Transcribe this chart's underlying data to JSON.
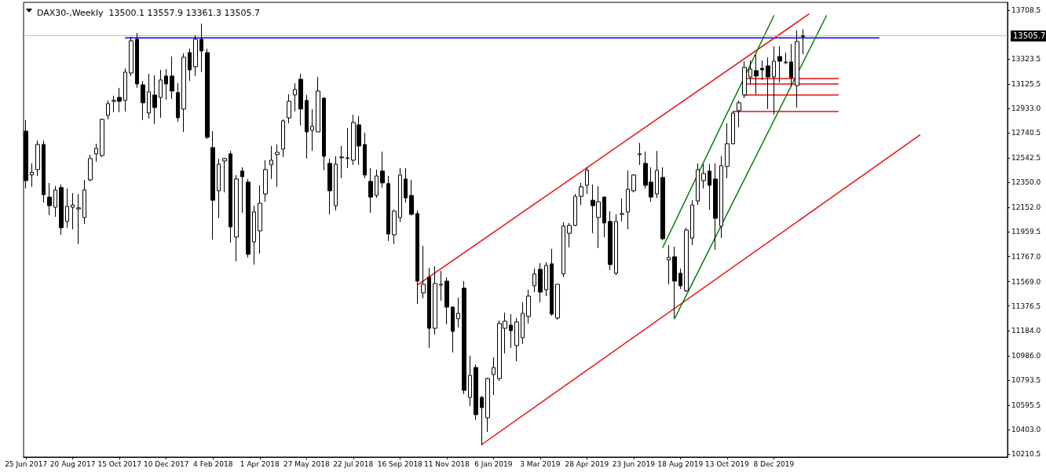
{
  "chart_data": {
    "type": "candlestick",
    "title": "DAX30-,Weekly  13500.1 13557.9 13361.3 13505.7",
    "x": [
      "2017-06-25",
      "2017-07-02",
      "2017-07-09",
      "2017-07-16",
      "2017-07-23",
      "2017-07-30",
      "2017-08-06",
      "2017-08-13",
      "2017-08-20",
      "2017-08-27",
      "2017-09-03",
      "2017-09-10",
      "2017-09-17",
      "2017-09-24",
      "2017-10-01",
      "2017-10-08",
      "2017-10-15",
      "2017-10-22",
      "2017-10-29",
      "2017-11-05",
      "2017-11-12",
      "2017-11-19",
      "2017-11-26",
      "2017-12-03",
      "2017-12-10",
      "2017-12-17",
      "2017-12-24",
      "2017-12-31",
      "2018-01-07",
      "2018-01-14",
      "2018-01-21",
      "2018-01-28",
      "2018-02-04",
      "2018-02-11",
      "2018-02-18",
      "2018-02-25",
      "2018-03-04",
      "2018-03-11",
      "2018-03-18",
      "2018-03-25",
      "2018-04-01",
      "2018-04-08",
      "2018-04-15",
      "2018-04-22",
      "2018-04-29",
      "2018-05-06",
      "2018-05-13",
      "2018-05-20",
      "2018-05-27",
      "2018-06-03",
      "2018-06-10",
      "2018-06-17",
      "2018-06-24",
      "2018-07-01",
      "2018-07-08",
      "2018-07-15",
      "2018-07-22",
      "2018-07-29",
      "2018-08-05",
      "2018-08-12",
      "2018-08-19",
      "2018-08-26",
      "2018-09-02",
      "2018-09-09",
      "2018-09-16",
      "2018-09-23",
      "2018-09-30",
      "2018-10-07",
      "2018-10-14",
      "2018-10-21",
      "2018-10-28",
      "2018-11-04",
      "2018-11-11",
      "2018-11-18",
      "2018-11-25",
      "2018-12-02",
      "2018-12-09",
      "2018-12-16",
      "2018-12-23",
      "2018-12-30",
      "2019-01-06",
      "2019-01-13",
      "2019-01-20",
      "2019-01-27",
      "2019-02-03",
      "2019-02-10",
      "2019-02-17",
      "2019-02-24",
      "2019-03-03",
      "2019-03-10",
      "2019-03-17",
      "2019-03-24",
      "2019-03-31",
      "2019-04-07",
      "2019-04-14",
      "2019-04-21",
      "2019-04-28",
      "2019-05-05",
      "2019-05-12",
      "2019-05-19",
      "2019-05-26",
      "2019-06-02",
      "2019-06-09",
      "2019-06-16",
      "2019-06-23",
      "2019-06-30",
      "2019-07-07",
      "2019-07-14",
      "2019-07-21",
      "2019-07-28",
      "2019-08-04",
      "2019-08-11",
      "2019-08-18",
      "2019-08-25",
      "2019-09-01",
      "2019-09-08",
      "2019-09-15",
      "2019-09-22",
      "2019-09-29",
      "2019-10-06",
      "2019-10-13",
      "2019-10-20",
      "2019-10-27",
      "2019-11-03",
      "2019-11-10",
      "2019-11-17",
      "2019-11-24",
      "2019-12-01",
      "2019-12-08",
      "2019-12-15",
      "2019-12-22",
      "2019-12-29",
      "2020-01-05",
      "2020-01-12"
    ],
    "ohlc": [
      [
        12755,
        12842,
        12303,
        12365
      ],
      [
        12410,
        12502,
        12316,
        12430
      ],
      [
        12452,
        12681,
        12402,
        12650
      ],
      [
        12650,
        12681,
        12192,
        12254
      ],
      [
        12235,
        12347,
        12093,
        12167
      ],
      [
        12155,
        12322,
        12080,
        12291
      ],
      [
        12310,
        12334,
        11938,
        11994
      ],
      [
        12043,
        12303,
        11994,
        12161
      ],
      [
        12155,
        12266,
        11981,
        12173
      ],
      [
        12142,
        12260,
        11864,
        12150
      ],
      [
        12074,
        12371,
        12025,
        12291
      ],
      [
        12371,
        12570,
        12360,
        12539
      ],
      [
        12576,
        12656,
        12514,
        12619
      ],
      [
        12563,
        12854,
        12551,
        12848
      ],
      [
        12879,
        12997,
        12848,
        12972
      ],
      [
        12990,
        13034,
        12904,
        12997
      ],
      [
        13021,
        13096,
        12904,
        12990
      ],
      [
        12997,
        13250,
        12910,
        13220
      ],
      [
        13213,
        13498,
        13190,
        13467
      ],
      [
        13479,
        13529,
        13096,
        13127
      ],
      [
        13120,
        13151,
        12842,
        12978
      ],
      [
        12898,
        13207,
        12854,
        13065
      ],
      [
        13040,
        13195,
        12811,
        12941
      ],
      [
        13021,
        13238,
        12860,
        13158
      ],
      [
        13189,
        13244,
        13003,
        13127
      ],
      [
        13189,
        13343,
        13009,
        13071
      ],
      [
        13059,
        13133,
        12829,
        12860
      ],
      [
        12929,
        13368,
        12749,
        13337
      ],
      [
        13374,
        13405,
        13151,
        13238
      ],
      [
        13263,
        13510,
        13189,
        13479
      ],
      [
        13479,
        13603,
        13220,
        13387
      ],
      [
        13374,
        13405,
        12693,
        12706
      ],
      [
        12625,
        12755,
        11901,
        12210
      ],
      [
        12285,
        12539,
        12068,
        12495
      ],
      [
        12520,
        12545,
        12272,
        12539
      ],
      [
        12576,
        12600,
        11876,
        12000
      ],
      [
        11920,
        12409,
        11728,
        12378
      ],
      [
        12440,
        12470,
        12111,
        12396
      ],
      [
        12353,
        12378,
        11759,
        11784
      ],
      [
        11882,
        12167,
        11703,
        12118
      ],
      [
        11969,
        12328,
        11790,
        12186
      ],
      [
        12260,
        12526,
        12198,
        12452
      ],
      [
        12489,
        12638,
        12378,
        12526
      ],
      [
        12570,
        12650,
        12316,
        12588
      ],
      [
        12613,
        12848,
        12551,
        12836
      ],
      [
        12860,
        13046,
        12817,
        12990
      ],
      [
        13040,
        13133,
        12910,
        13083
      ],
      [
        13164,
        13207,
        12799,
        12929
      ],
      [
        12997,
        13040,
        12539,
        12749
      ],
      [
        12761,
        12929,
        12600,
        12792
      ],
      [
        12749,
        13182,
        12749,
        13071
      ],
      [
        13015,
        13021,
        12446,
        12557
      ],
      [
        12501,
        12539,
        12099,
        12285
      ],
      [
        12167,
        12557,
        12130,
        12495
      ],
      [
        12545,
        12638,
        12384,
        12551
      ],
      [
        12539,
        12780,
        12464,
        12545
      ],
      [
        12526,
        12885,
        12489,
        12823
      ],
      [
        12805,
        12873,
        12489,
        12638
      ],
      [
        12650,
        12743,
        12384,
        12409
      ],
      [
        12359,
        12464,
        12111,
        12235
      ],
      [
        12248,
        12452,
        12229,
        12402
      ],
      [
        12440,
        12594,
        12310,
        12347
      ],
      [
        12341,
        12402,
        11889,
        11944
      ],
      [
        11938,
        12136,
        11864,
        12124
      ],
      [
        12074,
        12464,
        12037,
        12409
      ],
      [
        12378,
        12464,
        12192,
        12229
      ],
      [
        12248,
        12371,
        12090,
        12099
      ],
      [
        12105,
        12130,
        11393,
        11573
      ],
      [
        11480,
        11851,
        11437,
        11548
      ],
      [
        11604,
        11678,
        11047,
        11201
      ],
      [
        11201,
        11690,
        11152,
        11554
      ],
      [
        11542,
        11653,
        11418,
        11548
      ],
      [
        11573,
        11604,
        11232,
        11368
      ],
      [
        11368,
        11374,
        11010,
        11177
      ],
      [
        11276,
        11443,
        11208,
        11319
      ],
      [
        11517,
        11573,
        10681,
        10712
      ],
      [
        10656,
        10985,
        10588,
        10830
      ],
      [
        10892,
        10916,
        10477,
        10520
      ],
      [
        10656,
        10669,
        10279,
        10576
      ],
      [
        10496,
        10811,
        10384,
        10805
      ],
      [
        10836,
        10972,
        10675,
        10892
      ],
      [
        10805,
        11263,
        10787,
        11239
      ],
      [
        11201,
        11325,
        11003,
        11257
      ],
      [
        11226,
        11313,
        11047,
        11183
      ],
      [
        11065,
        11282,
        10941,
        11251
      ],
      [
        11127,
        11406,
        11078,
        11319
      ],
      [
        11294,
        11505,
        11239,
        11455
      ],
      [
        11536,
        11672,
        11486,
        11629
      ],
      [
        11666,
        11715,
        11406,
        11486
      ],
      [
        11505,
        11722,
        11455,
        11697
      ],
      [
        11709,
        11827,
        11300,
        11313
      ],
      [
        11282,
        11548,
        11269,
        11548
      ],
      [
        11629,
        12037,
        11604,
        12006
      ],
      [
        11950,
        12031,
        11839,
        12012
      ],
      [
        12012,
        12260,
        12006,
        12241
      ],
      [
        12241,
        12347,
        12173,
        12316
      ],
      [
        12328,
        12470,
        12260,
        12446
      ],
      [
        12210,
        12334,
        11950,
        12167
      ],
      [
        12074,
        12322,
        11833,
        12198
      ],
      [
        12235,
        12241,
        11919,
        12031
      ],
      [
        12043,
        12124,
        11660,
        11703
      ],
      [
        11635,
        12099,
        11622,
        12043
      ],
      [
        12099,
        12223,
        12043,
        12105
      ],
      [
        12118,
        12446,
        11981,
        12297
      ],
      [
        12285,
        12415,
        12272,
        12409
      ],
      [
        12570,
        12662,
        12489,
        12576
      ],
      [
        12501,
        12594,
        12303,
        12328
      ],
      [
        12353,
        12470,
        12198,
        12235
      ],
      [
        12260,
        12600,
        12229,
        12446
      ],
      [
        12390,
        12470,
        11895,
        11907
      ],
      [
        11740,
        11857,
        11548,
        11759
      ],
      [
        11765,
        11845,
        11282,
        11573
      ],
      [
        11635,
        11672,
        11511,
        11536
      ],
      [
        11498,
        11994,
        11486,
        11975
      ],
      [
        11913,
        12210,
        11857,
        12173
      ],
      [
        12204,
        12501,
        12173,
        12452
      ],
      [
        12365,
        12495,
        12303,
        12421
      ],
      [
        12440,
        12495,
        12136,
        12328
      ],
      [
        12378,
        12501,
        11820,
        12068
      ],
      [
        12006,
        12557,
        11913,
        12483
      ],
      [
        12477,
        12817,
        12384,
        12656
      ],
      [
        12656,
        12910,
        12650,
        12897
      ],
      [
        12916,
        12997,
        12786,
        12978
      ],
      [
        13040,
        13306,
        13015,
        13257
      ],
      [
        13182,
        13312,
        13127,
        13244
      ],
      [
        13232,
        13356,
        13046,
        13189
      ],
      [
        13250,
        13312,
        13157,
        13238
      ],
      [
        13269,
        13337,
        12929,
        13182
      ],
      [
        13182,
        13424,
        12885,
        13306
      ],
      [
        13343,
        13424,
        13139,
        13306
      ],
      [
        13294,
        13374,
        13281,
        13300
      ],
      [
        13300,
        13442,
        13108,
        13176
      ],
      [
        13114,
        13548,
        12941,
        13461
      ],
      [
        13500.1,
        13557.9,
        13361.3,
        13505.7
      ]
    ],
    "series": [
      {
        "type": "line",
        "color": "#0000ff",
        "x": [
          "2017-10-22",
          "2020-04-12"
        ],
        "values": [
          13490,
          13490
        ]
      },
      {
        "type": "line",
        "color": "#e81010",
        "x": [
          "2018-10-07",
          "2020-01-19"
        ],
        "values": [
          11542,
          13678
        ]
      },
      {
        "type": "line",
        "color": "#e81010",
        "x": [
          "2018-12-23",
          "2020-05-31"
        ],
        "values": [
          10285,
          12724
        ]
      },
      {
        "type": "line",
        "color": "#008000",
        "x": [
          "2019-07-28",
          "2019-12-08"
        ],
        "values": [
          11839,
          13665
        ]
      },
      {
        "type": "line",
        "color": "#008000",
        "x": [
          "2019-08-11",
          "2020-02-09"
        ],
        "values": [
          11276,
          13665
        ]
      },
      {
        "type": "line",
        "color": "#e81010",
        "x": [
          "2019-11-03",
          "2020-02-23"
        ],
        "values": [
          13170,
          13170
        ]
      },
      {
        "type": "line",
        "color": "#e81010",
        "x": [
          "2019-11-03",
          "2020-02-23"
        ],
        "values": [
          13127,
          13127
        ]
      },
      {
        "type": "line",
        "color": "#e81010",
        "x": [
          "2019-11-03",
          "2020-02-23"
        ],
        "values": [
          13040,
          13040
        ]
      },
      {
        "type": "line",
        "color": "#e81010",
        "x": [
          "2019-10-20",
          "2020-02-23"
        ],
        "values": [
          12910,
          12910
        ]
      }
    ],
    "ref_lines": [
      {
        "axis": "y",
        "value": 13505.7,
        "label": "13505.7",
        "color": "#c0c0c0"
      }
    ],
    "xlim": [
      "2017-06-22",
      "2020-09-13"
    ],
    "xticks": [
      {
        "value": "2017-06-25",
        "label": "25 Jun 2017"
      },
      {
        "value": "2017-08-20",
        "label": "20 Aug 2017"
      },
      {
        "value": "2017-10-15",
        "label": "15 Oct 2017"
      },
      {
        "value": "2017-12-10",
        "label": "10 Dec 2017"
      },
      {
        "value": "2018-02-04",
        "label": "4 Feb 2018"
      },
      {
        "value": "2018-04-01",
        "label": "1 Apr 2018"
      },
      {
        "value": "2018-05-27",
        "label": "27 May 2018"
      },
      {
        "value": "2018-07-22",
        "label": "22 Jul 2018"
      },
      {
        "value": "2018-09-16",
        "label": "16 Sep 2018"
      },
      {
        "value": "2018-11-11",
        "label": "11 Nov 2018"
      },
      {
        "value": "2019-01-06",
        "label": "6 Jan 2019"
      },
      {
        "value": "2019-03-03",
        "label": "3 Mar 2019"
      },
      {
        "value": "2019-04-28",
        "label": "28 Apr 2019"
      },
      {
        "value": "2019-06-23",
        "label": "23 Jun 2019"
      },
      {
        "value": "2019-08-18",
        "label": "18 Aug 2019"
      },
      {
        "value": "2019-10-13",
        "label": "13 Oct 2019"
      },
      {
        "value": "2019-12-08",
        "label": "8 Dec 2019"
      }
    ],
    "ylim": [
      10186,
      13770
    ],
    "yticks": [
      13708.5,
      13323.5,
      13125.5,
      {
        "value": 12933,
        "label": "12933.0"
      },
      12740.5,
      12542.5,
      {
        "value": 12350,
        "label": "12350.0"
      },
      {
        "value": 12152,
        "label": "12152.0"
      },
      11959.5,
      {
        "value": 11767,
        "label": "11767.0"
      },
      {
        "value": 11569,
        "label": "11569.0"
      },
      11376.5,
      {
        "value": 11184,
        "label": "11184.0"
      },
      {
        "value": 10986,
        "label": "10986.0"
      },
      10793.5,
      10595.5,
      {
        "value": 10403,
        "label": "10403.0"
      },
      10210.5
    ]
  }
}
